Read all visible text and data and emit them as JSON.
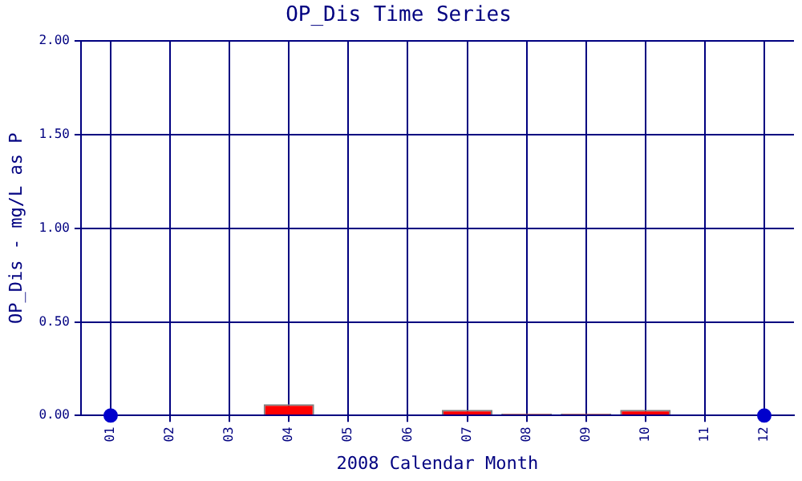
{
  "chart_data": {
    "type": "bar",
    "title": "OP_Dis Time Series",
    "xlabel": "2008 Calendar Month",
    "ylabel": "OP_Dis - mg/L as P",
    "categories": [
      "01",
      "02",
      "03",
      "04",
      "05",
      "06",
      "07",
      "08",
      "09",
      "10",
      "11",
      "12"
    ],
    "series": [
      {
        "color": "#ff0000",
        "values": [
          null,
          0,
          0,
          0.06,
          0,
          0,
          0.03,
          0.01,
          0.01,
          0.03,
          0,
          null
        ]
      },
      {
        "type": "scatter",
        "color": "#0000cc",
        "x": [
          "01",
          "12"
        ],
        "values": [
          0,
          0
        ]
      }
    ],
    "ylim": [
      0,
      2
    ],
    "yticks": [
      {
        "value": 0,
        "label": "0.00"
      },
      {
        "value": 0.5,
        "label": "0.50"
      },
      {
        "value": 1,
        "label": "1.00"
      },
      {
        "value": 1.5,
        "label": "1.50"
      },
      {
        "value": 2,
        "label": "2.00"
      }
    ],
    "grid": true,
    "legend": false,
    "marker": "circle"
  }
}
